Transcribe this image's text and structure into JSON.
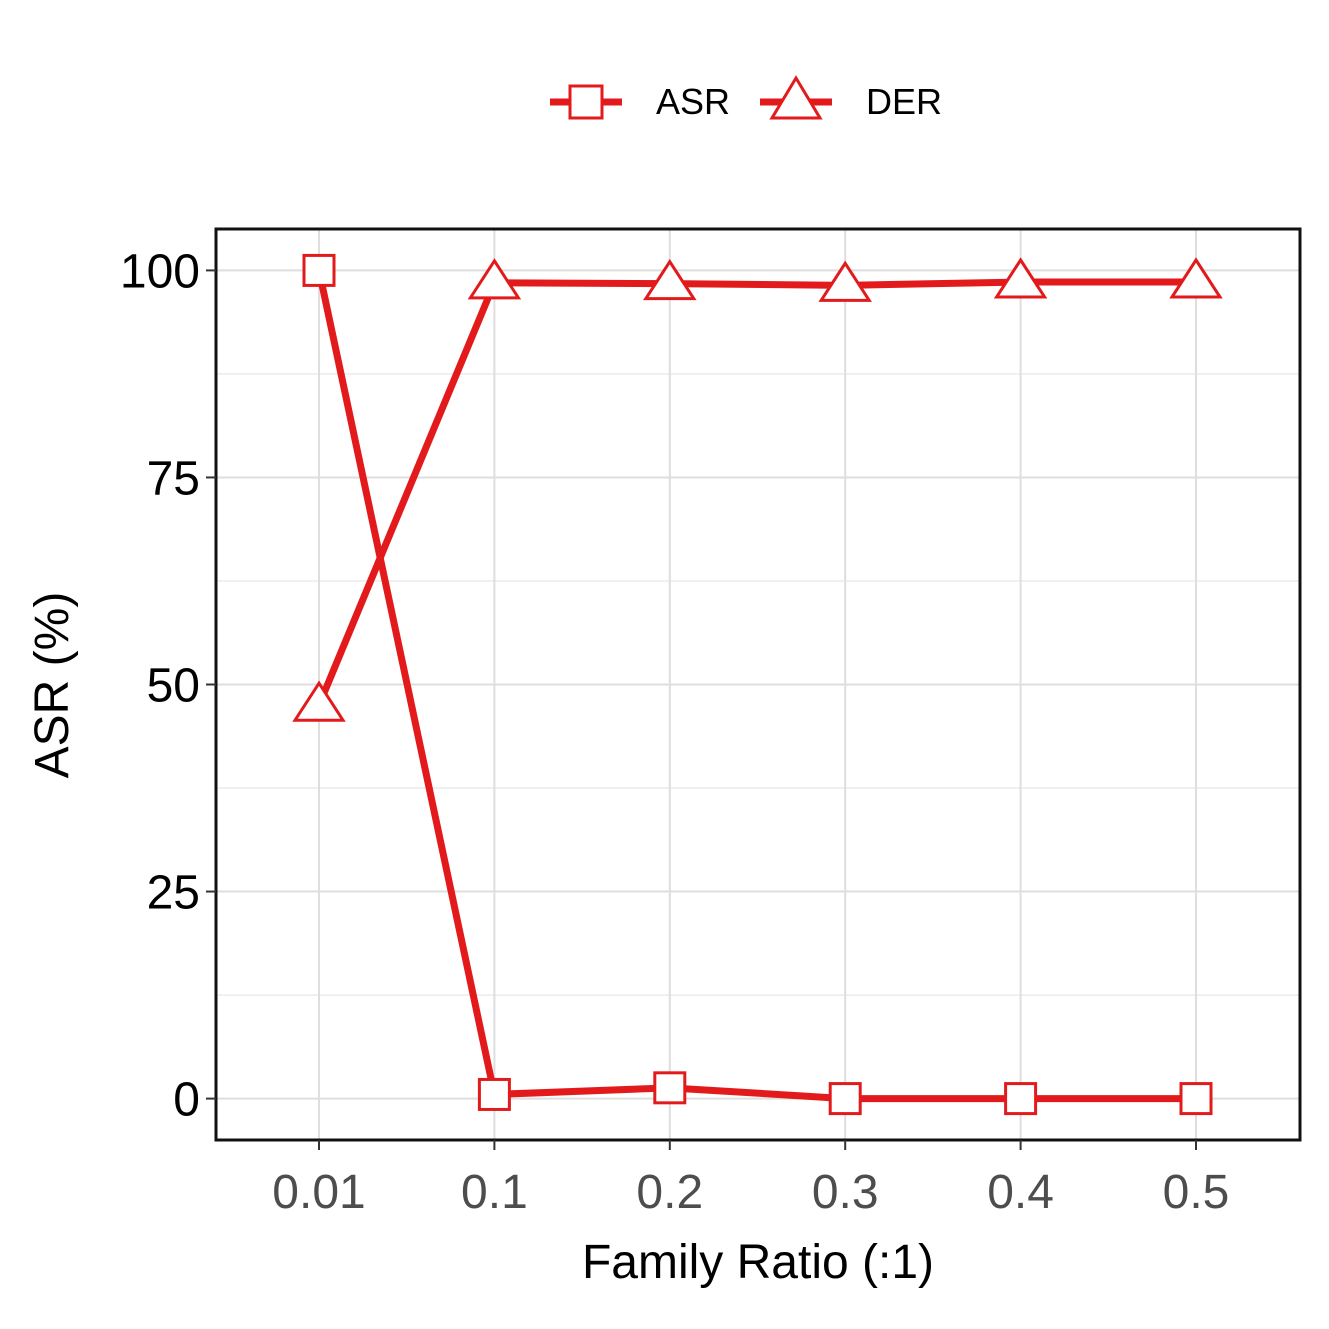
{
  "chart_data": {
    "type": "line",
    "xlabel": "Family Ratio (:1)",
    "ylabel": "ASR (%)",
    "categories": [
      "0.01",
      "0.1",
      "0.2",
      "0.3",
      "0.4",
      "0.5"
    ],
    "ylim": [
      -5,
      105
    ],
    "yticks": [
      0,
      25,
      50,
      75,
      100
    ],
    "grid": true,
    "legend_position": "top",
    "series": [
      {
        "name": "ASR",
        "marker": "square",
        "color": "#e31a1c",
        "values": [
          100,
          0.5,
          1.3,
          0.0,
          0.0,
          0.0
        ]
      },
      {
        "name": "DER",
        "marker": "triangle",
        "color": "#e31a1c",
        "values": [
          47.5,
          98.5,
          98.4,
          98.2,
          98.6,
          98.6
        ]
      }
    ]
  }
}
